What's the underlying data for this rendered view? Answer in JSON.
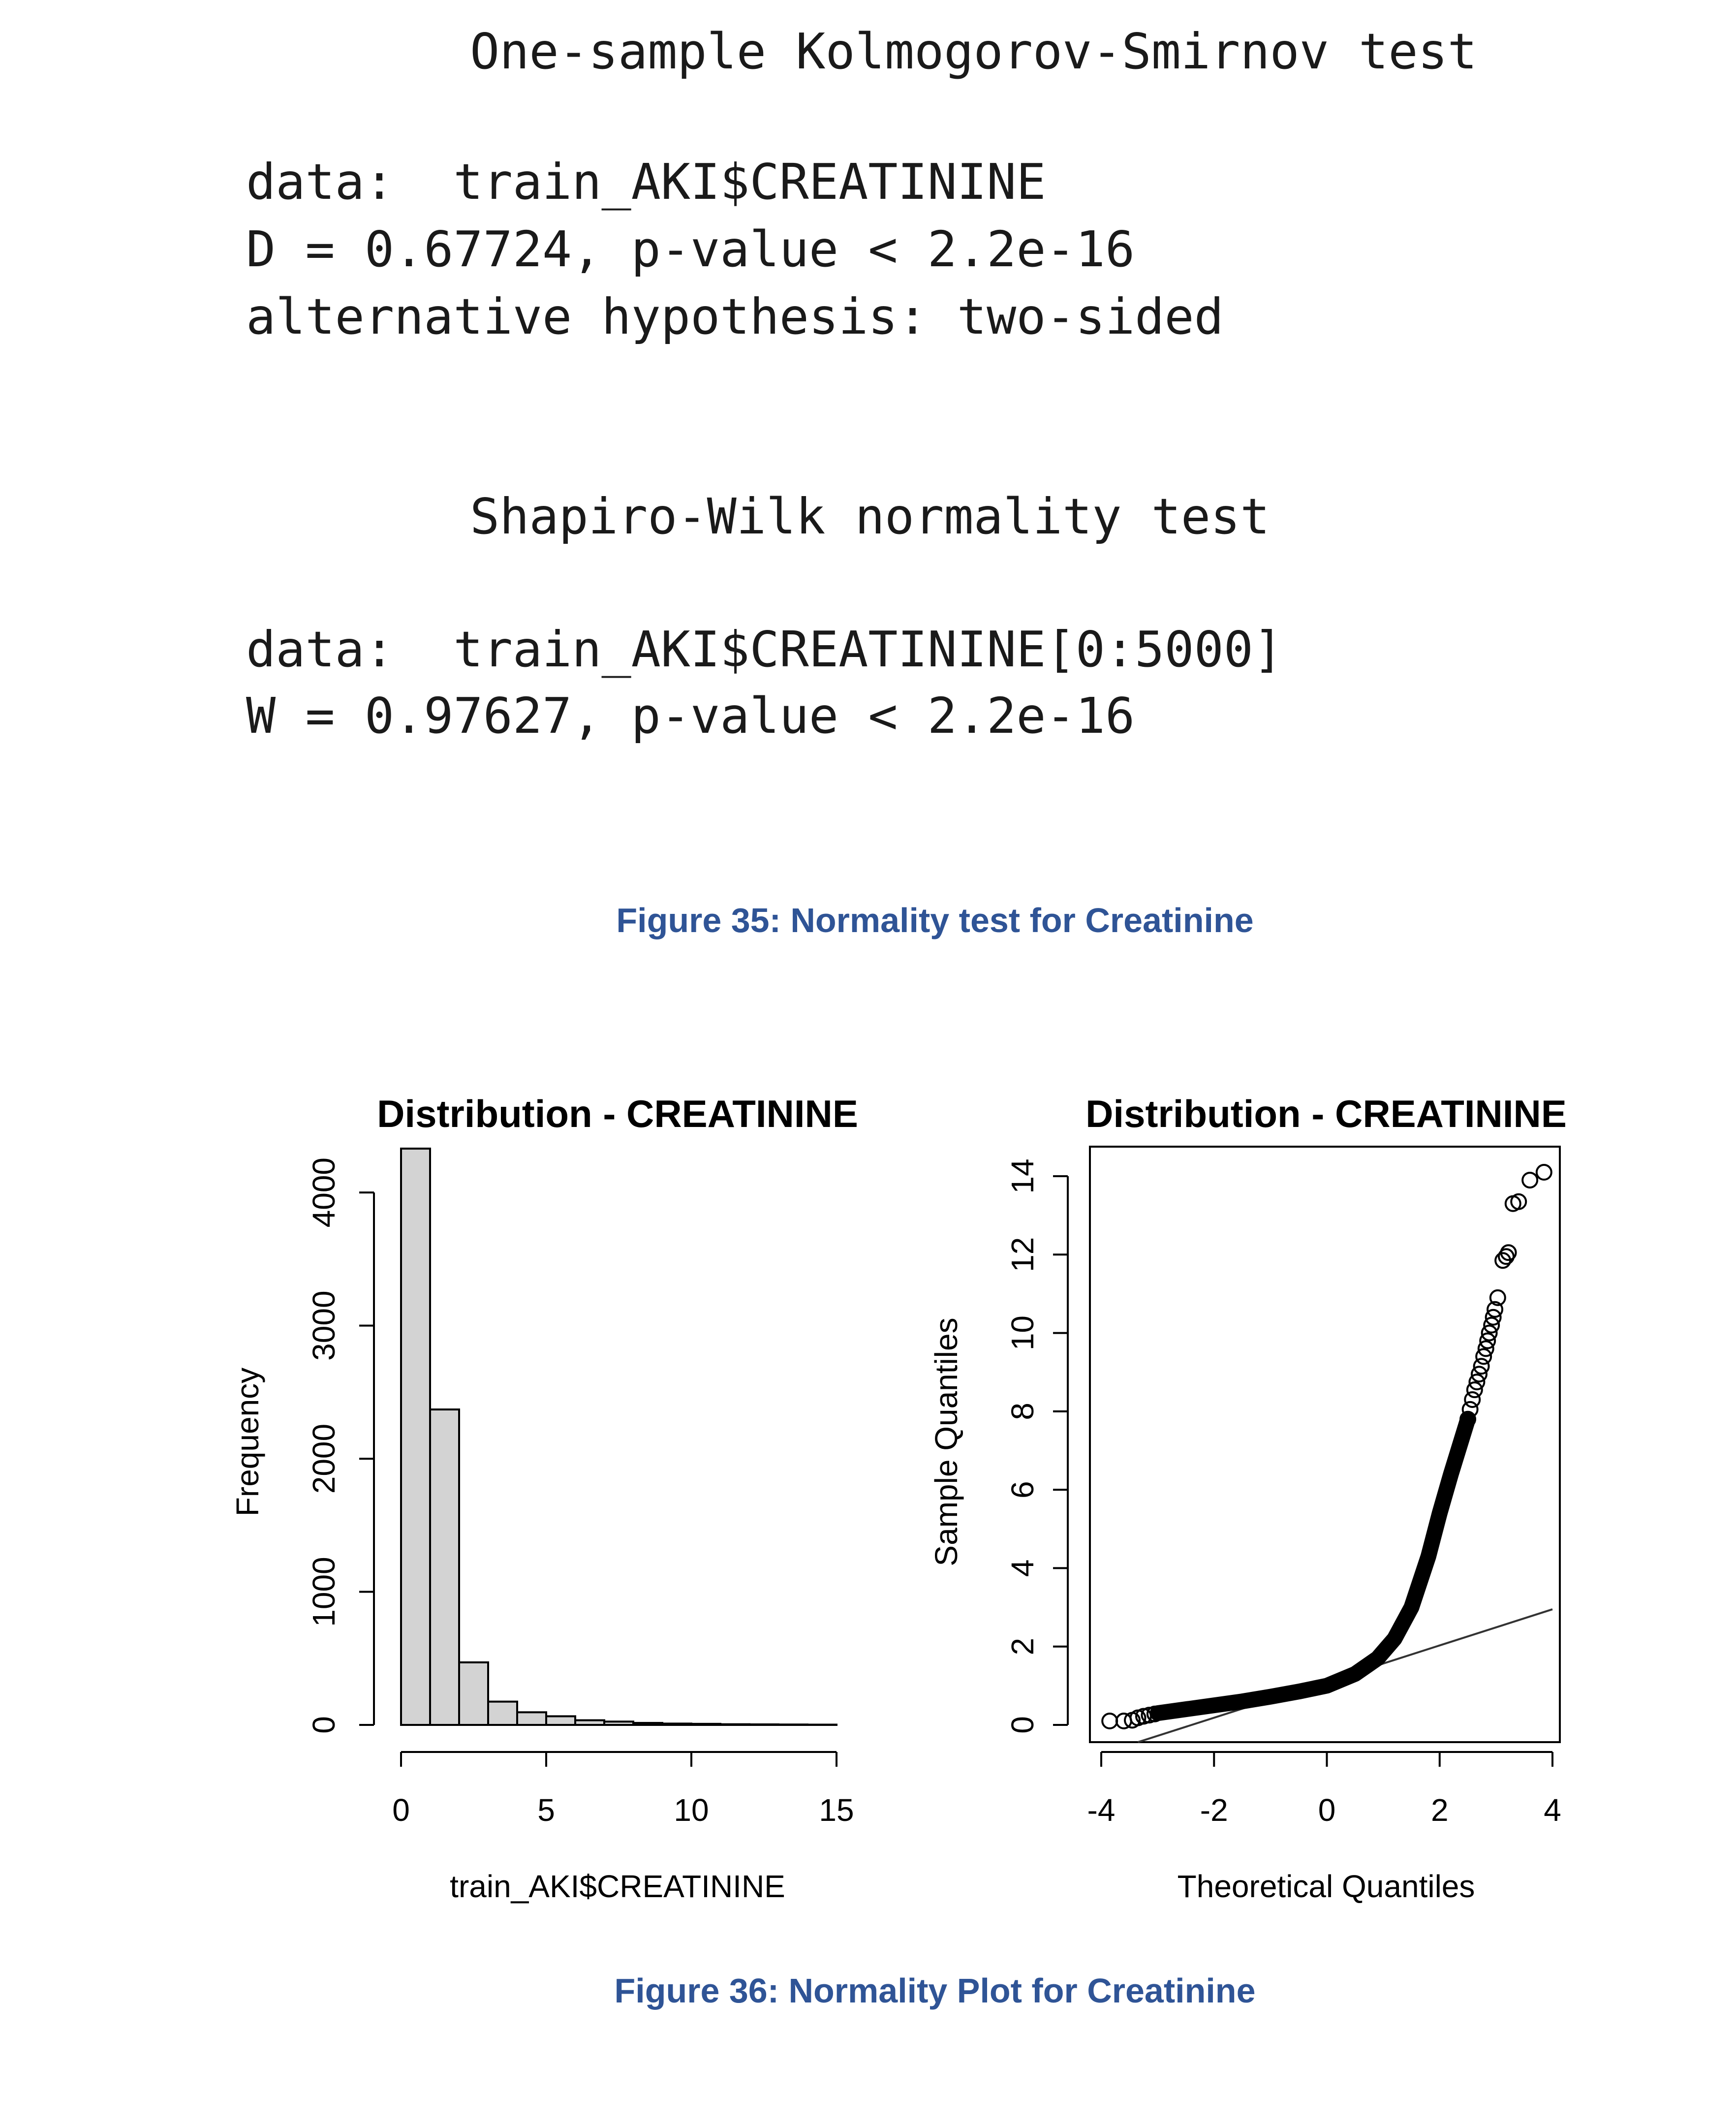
{
  "ks_test": {
    "title": "One-sample Kolmogorov-Smirnov test",
    "data_line": "data:  train_AKI$CREATININE",
    "stat_line": "D = 0.67724, p-value < 2.2e-16",
    "alt_line": "alternative hypothesis: two-sided"
  },
  "sw_test": {
    "title": "Shapiro-Wilk normality test",
    "data_line": "data:  train_AKI$CREATININE[0:5000]",
    "stat_line": "W = 0.97627, p-value < 2.2e-16"
  },
  "figure35_caption": "Figure 35: Normality test for Creatinine",
  "figure36_caption": "Figure 36: Normality Plot for Creatinine",
  "chart_data": [
    {
      "type": "bar",
      "title": "Distribution - CREATININE",
      "xlabel": "train_AKI$CREATININE",
      "ylabel": "Frequency",
      "bin_width": 1,
      "bin_start": 0,
      "values": [
        4330,
        2370,
        470,
        175,
        95,
        65,
        35,
        25,
        15,
        10,
        8,
        5,
        4,
        3,
        2
      ],
      "xlim": [
        0,
        15
      ],
      "ylim": [
        0,
        4400
      ],
      "xticks": [
        "0",
        "5",
        "10",
        "15"
      ],
      "yticks": [
        "0",
        "1000",
        "2000",
        "3000",
        "4000"
      ],
      "bar_color": "#d3d3d3"
    },
    {
      "type": "scatter",
      "title": "Distribution - CREATININE",
      "xlabel": "Theoretical Quantiles",
      "ylabel": "Sample Quantiles",
      "xlim": [
        -4,
        4
      ],
      "ylim": [
        0,
        14
      ],
      "xticks": [
        "-4",
        "-2",
        "0",
        "2",
        "4"
      ],
      "yticks": [
        "0",
        "2",
        "4",
        "6",
        "8",
        "10",
        "12",
        "14"
      ],
      "reference_line": {
        "x": [
          -3.35,
          4.0
        ],
        "y": [
          -0.5,
          2.95
        ]
      },
      "upper_tail_points": [
        [
          3.85,
          14.1
        ],
        [
          3.6,
          13.9
        ],
        [
          3.4,
          13.35
        ],
        [
          3.3,
          13.3
        ],
        [
          3.22,
          12.05
        ],
        [
          3.18,
          11.95
        ],
        [
          3.12,
          11.85
        ],
        [
          3.03,
          10.9
        ],
        [
          2.98,
          10.6
        ],
        [
          2.95,
          10.4
        ],
        [
          2.92,
          10.2
        ],
        [
          2.88,
          10.0
        ],
        [
          2.85,
          9.8
        ],
        [
          2.82,
          9.6
        ],
        [
          2.78,
          9.4
        ],
        [
          2.74,
          9.15
        ],
        [
          2.7,
          8.95
        ],
        [
          2.66,
          8.75
        ],
        [
          2.62,
          8.55
        ],
        [
          2.58,
          8.3
        ],
        [
          2.54,
          8.05
        ],
        [
          2.5,
          7.8
        ]
      ],
      "lower_tail_points": [
        [
          -3.85,
          0.1
        ],
        [
          -3.6,
          0.1
        ],
        [
          -3.45,
          0.12
        ],
        [
          -3.35,
          0.18
        ],
        [
          -3.25,
          0.22
        ],
        [
          -3.15,
          0.25
        ],
        [
          -3.05,
          0.28
        ]
      ],
      "body_curve": [
        [
          -3.0,
          0.3
        ],
        [
          -2.5,
          0.4
        ],
        [
          -2.0,
          0.5
        ],
        [
          -1.5,
          0.6
        ],
        [
          -1.0,
          0.72
        ],
        [
          -0.5,
          0.85
        ],
        [
          0.0,
          1.0
        ],
        [
          0.5,
          1.3
        ],
        [
          0.9,
          1.7
        ],
        [
          1.2,
          2.2
        ],
        [
          1.5,
          3.0
        ],
        [
          1.8,
          4.3
        ],
        [
          2.0,
          5.4
        ],
        [
          2.2,
          6.4
        ],
        [
          2.35,
          7.1
        ],
        [
          2.5,
          7.8
        ]
      ]
    }
  ]
}
